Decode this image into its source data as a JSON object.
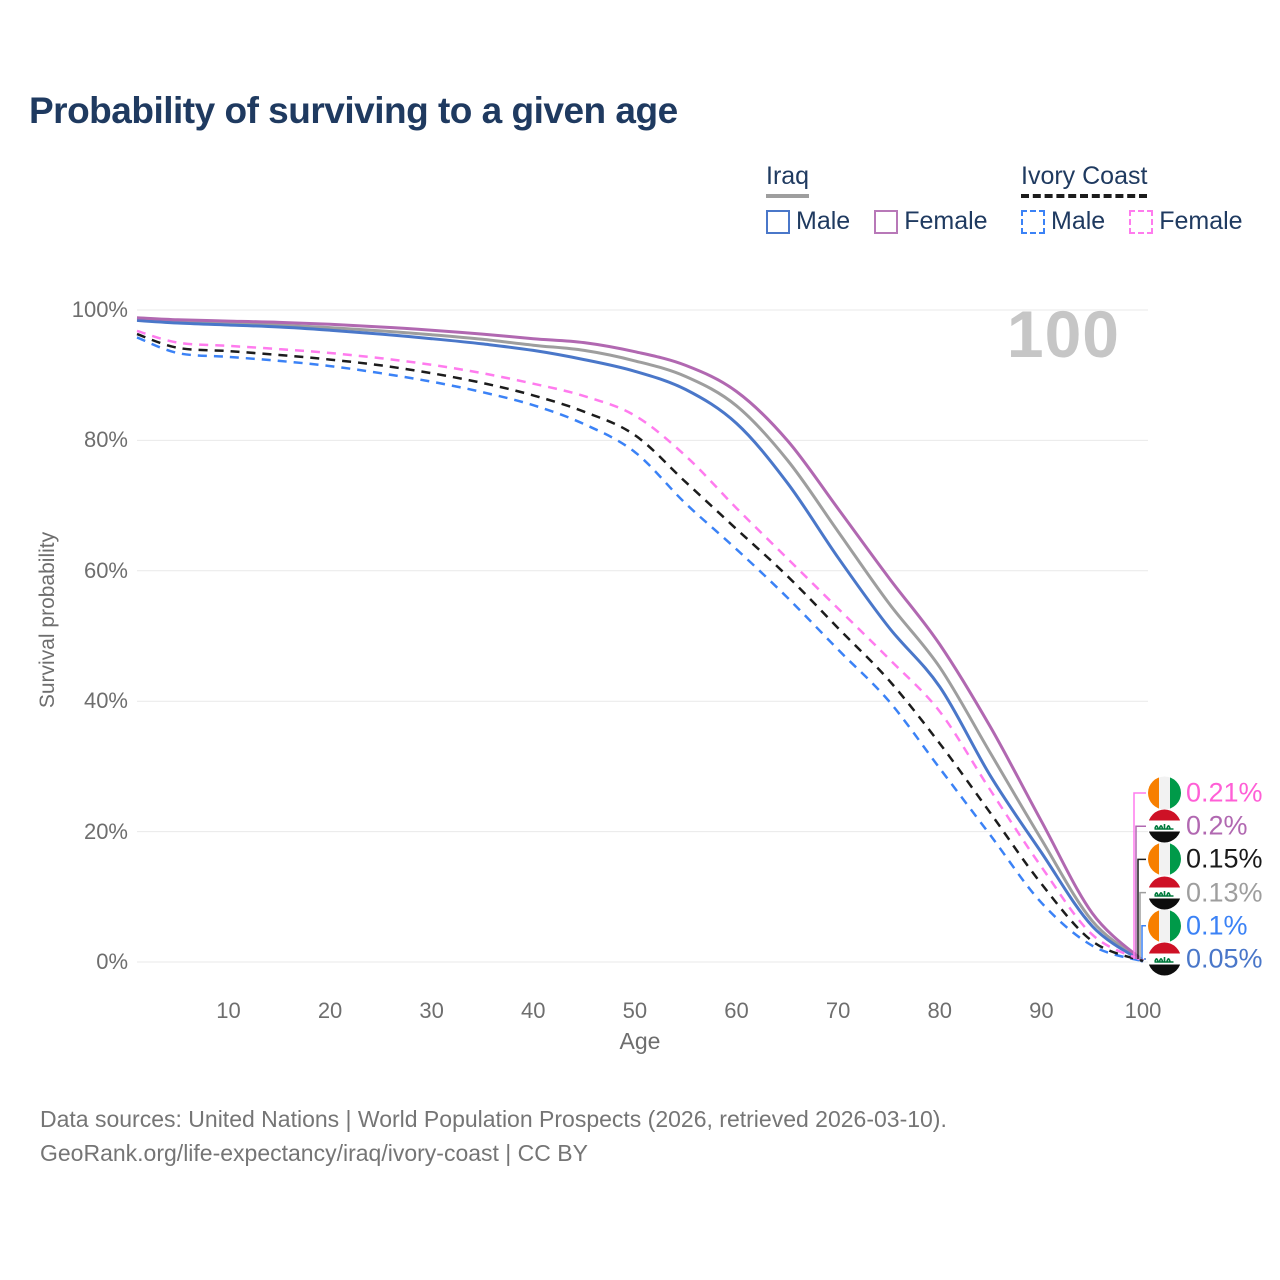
{
  "header": {
    "title": "Probability of surviving to a given age"
  },
  "legend": {
    "groups": [
      {
        "country": "Iraq",
        "style": "solid",
        "underline_color": "#9e9e9e",
        "items": [
          {
            "label": "Male",
            "color": "#4a77c9"
          },
          {
            "label": "Female",
            "color": "#b878b8"
          }
        ]
      },
      {
        "country": "Ivory Coast",
        "style": "dashed",
        "underline_color": "#1c1c1c",
        "items": [
          {
            "label": "Male",
            "color": "#3b82f6"
          },
          {
            "label": "Female",
            "color": "#ff7bee"
          }
        ]
      }
    ]
  },
  "chart_data": {
    "type": "line",
    "title": "Probability of surviving to a given age",
    "xlabel": "Age",
    "ylabel": "Survival probability",
    "xlim": [
      1,
      100
    ],
    "ylim": [
      0,
      100
    ],
    "grid": "horizontal",
    "legend_position": "top-right",
    "hover_label": "100",
    "x_ticks": [
      10,
      20,
      30,
      40,
      50,
      60,
      70,
      80,
      90,
      100
    ],
    "y_ticks": [
      {
        "value": 0,
        "label": "0%"
      },
      {
        "value": 20,
        "label": "20%"
      },
      {
        "value": 40,
        "label": "40%"
      },
      {
        "value": 60,
        "label": "60%"
      },
      {
        "value": 80,
        "label": "80%"
      },
      {
        "value": 100,
        "label": "100%"
      }
    ],
    "ages": [
      1,
      5,
      10,
      15,
      20,
      25,
      30,
      35,
      40,
      45,
      50,
      55,
      60,
      65,
      70,
      75,
      80,
      85,
      90,
      95,
      100
    ],
    "series": [
      {
        "id": "iraq-both",
        "name": "Iraq",
        "country": "Iraq",
        "sex": "both",
        "line": "solid",
        "color": "#9e9e9e",
        "values": [
          98.6,
          98.2,
          98.0,
          97.7,
          97.3,
          96.8,
          96.2,
          95.5,
          94.6,
          93.8,
          92.2,
          89.8,
          85.3,
          77.0,
          66.0,
          55.0,
          45.2,
          32.0,
          18.8,
          6.3,
          0.13
        ]
      },
      {
        "id": "iraq-male",
        "name": "Male",
        "country": "Iraq",
        "sex": "male",
        "line": "solid",
        "color": "#4a77c9",
        "values": [
          98.4,
          98.0,
          97.7,
          97.4,
          96.9,
          96.3,
          95.6,
          94.8,
          93.8,
          92.4,
          90.6,
          87.8,
          82.6,
          73.5,
          62.0,
          51.3,
          42.2,
          28.5,
          16.8,
          5.5,
          0.05
        ]
      },
      {
        "id": "iraq-female",
        "name": "Female",
        "country": "Iraq",
        "sex": "female",
        "line": "solid",
        "color": "#b168b1",
        "values": [
          98.8,
          98.5,
          98.3,
          98.1,
          97.8,
          97.4,
          96.9,
          96.3,
          95.6,
          95.0,
          93.6,
          91.5,
          87.5,
          80.0,
          69.5,
          58.9,
          48.7,
          36.0,
          21.6,
          7.5,
          0.2
        ]
      },
      {
        "id": "ivory-coast-male",
        "name": "Male",
        "country": "Ivory Coast",
        "sex": "male",
        "line": "dashed",
        "color": "#3b82f6",
        "values": [
          95.8,
          93.4,
          92.8,
          92.2,
          91.4,
          90.3,
          89.0,
          87.4,
          85.4,
          82.5,
          78.2,
          70.3,
          63.3,
          55.9,
          47.9,
          40.0,
          29.7,
          19.4,
          9.1,
          2.5,
          0.1
        ]
      },
      {
        "id": "ivory-coast-both",
        "name": "Ivory Coast",
        "country": "Ivory Coast",
        "sex": "both",
        "line": "dashed",
        "color": "#1c1c1c",
        "values": [
          96.3,
          94.2,
          93.7,
          93.1,
          92.4,
          91.5,
          90.3,
          88.8,
          86.9,
          84.4,
          80.8,
          73.6,
          66.4,
          59.2,
          51.2,
          43.2,
          33.5,
          22.8,
          12.0,
          3.2,
          0.15
        ]
      },
      {
        "id": "ivory-coast-female",
        "name": "Female",
        "country": "Ivory Coast",
        "sex": "female",
        "line": "dashed",
        "color": "#ff7bee",
        "values": [
          96.8,
          95.0,
          94.5,
          94.0,
          93.4,
          92.6,
          91.6,
          90.3,
          88.7,
          86.8,
          83.8,
          77.6,
          69.6,
          61.9,
          54.2,
          46.5,
          38.4,
          26.3,
          14.6,
          4.2,
          0.21
        ]
      }
    ],
    "end_labels": [
      {
        "series": "ivory-coast-female",
        "flag": "ivory-coast",
        "text": "0.21%",
        "color": "#ff5fd6"
      },
      {
        "series": "iraq-female",
        "flag": "iraq",
        "text": "0.2%",
        "color": "#b168b1"
      },
      {
        "series": "ivory-coast-both",
        "flag": "ivory-coast",
        "text": "0.15%",
        "color": "#1a1a1a"
      },
      {
        "series": "iraq-both",
        "flag": "iraq",
        "text": "0.13%",
        "color": "#9e9e9e"
      },
      {
        "series": "ivory-coast-male",
        "flag": "ivory-coast",
        "text": "0.1%",
        "color": "#3b82f6"
      },
      {
        "series": "iraq-male",
        "flag": "iraq",
        "text": "0.05%",
        "color": "#4a77c9"
      }
    ]
  },
  "footer": {
    "line1": "Data sources: United Nations | World Population Prospects (2026, retrieved 2026-03-10).",
    "line2": "GeoRank.org/life-expectancy/iraq/ivory-coast | CC BY"
  }
}
